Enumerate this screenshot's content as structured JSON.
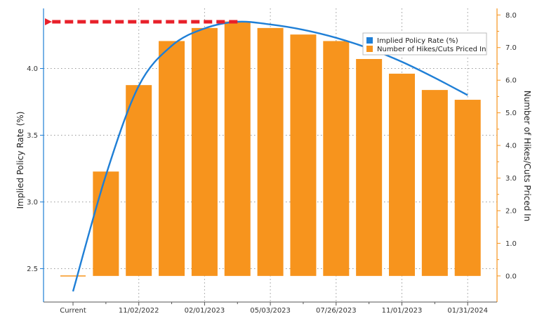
{
  "chart_data": {
    "type": "bar+line",
    "categories": [
      "Current",
      "",
      "11/02/2022",
      "",
      "02/01/2023",
      "",
      "05/03/2023",
      "",
      "07/26/2023",
      "",
      "11/01/2023",
      "",
      "01/31/2024"
    ],
    "x_tick_labels": [
      "Current",
      "11/02/2022",
      "02/01/2023",
      "05/03/2023",
      "07/26/2023",
      "11/01/2023",
      "01/31/2024"
    ],
    "series": [
      {
        "name": "Implied Policy Rate (%)",
        "type": "line",
        "axis": "left",
        "color": "#1f7fd6",
        "values": [
          2.33,
          3.2,
          3.87,
          4.17,
          4.3,
          4.35,
          4.33,
          4.29,
          4.23,
          4.15,
          4.05,
          3.93,
          3.8
        ]
      },
      {
        "name": "Number of Hikes/Cuts Priced In",
        "type": "bar",
        "axis": "right",
        "color": "#f7941d",
        "values": [
          0.0,
          3.2,
          5.85,
          7.2,
          7.6,
          7.8,
          7.6,
          7.4,
          7.2,
          6.65,
          6.2,
          5.7,
          5.4
        ]
      }
    ],
    "left_axis": {
      "label": "Implied Policy Rate (%)",
      "ylim": [
        2.25,
        4.45
      ],
      "ticks": [
        "2.5",
        "3.0",
        "3.5",
        "4.0"
      ]
    },
    "right_axis": {
      "label": "Number of Hikes/Cuts Priced In",
      "ylim": [
        -0.8,
        8.2
      ],
      "ticks": [
        "0.0",
        "1.0",
        "2.0",
        "3.0",
        "4.0",
        "5.0",
        "6.0",
        "7.0",
        "8.0"
      ]
    },
    "annotation": {
      "type": "dashed-arrow",
      "color": "#e8202a",
      "from_value": 4.35,
      "description": "red dashed arrow pointing from the peak rate back to the left axis"
    },
    "legend": {
      "placement": "top-right",
      "items": [
        {
          "label": "Implied Policy Rate (%)",
          "color": "#1f7fd6"
        },
        {
          "label": "Number of Hikes/Cuts Priced In",
          "color": "#f7941d"
        }
      ]
    },
    "grid": true
  }
}
